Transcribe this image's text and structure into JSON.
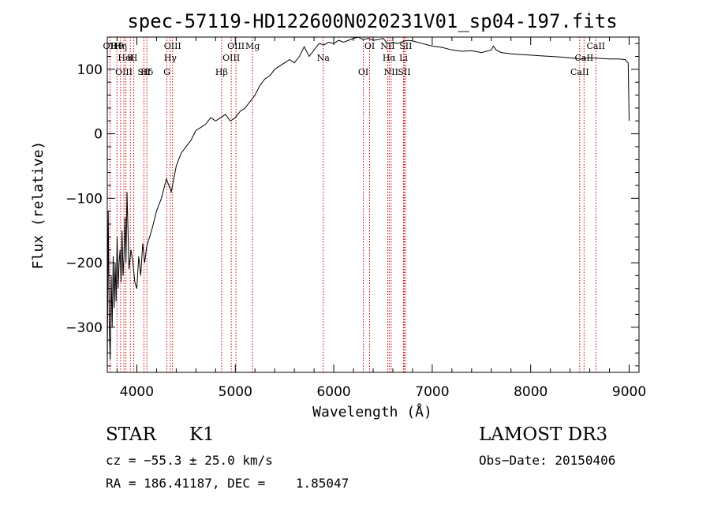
{
  "chart_data": {
    "type": "line",
    "title": "spec-57119-HD122600N020231V01_sp04-197.fits",
    "xlabel": "Wavelength (Å)",
    "ylabel": "Flux (relative)",
    "xlim": [
      3700,
      9100
    ],
    "ylim": [
      -370,
      150
    ],
    "x_ticks": [
      4000,
      5000,
      6000,
      7000,
      8000,
      9000
    ],
    "y_ticks": [
      -300,
      -200,
      -100,
      0,
      100
    ],
    "grid": false,
    "series": [
      {
        "x": [
          3700,
          3710,
          3720,
          3730,
          3740,
          3750,
          3760,
          3770,
          3780,
          3790,
          3800,
          3810,
          3820,
          3830,
          3840,
          3850,
          3860,
          3870,
          3880,
          3890,
          3900,
          3920,
          3940,
          3960,
          3980,
          4000,
          4020,
          4040,
          4060,
          4080,
          4100,
          4150,
          4200,
          4250,
          4300,
          4350,
          4400,
          4450,
          4500,
          4550,
          4600,
          4650,
          4700,
          4750,
          4800,
          4850,
          4900,
          4950,
          5000,
          5050,
          5100,
          5150,
          5200,
          5250,
          5300,
          5350,
          5400,
          5450,
          5500,
          5550,
          5600,
          5650,
          5700,
          5750,
          5800,
          5850,
          5900,
          5950,
          6000,
          6050,
          6100,
          6150,
          6200,
          6250,
          6300,
          6350,
          6400,
          6450,
          6500,
          6550,
          6600,
          6650,
          6700,
          6750,
          6800,
          6900,
          7000,
          7100,
          7200,
          7300,
          7400,
          7500,
          7600,
          7620,
          7650,
          7700,
          7800,
          7900,
          8000,
          8100,
          8200,
          8300,
          8400,
          8500,
          8600,
          8700,
          8800,
          8900,
          8960,
          8990,
          9000
        ],
        "y": [
          -360,
          -120,
          -300,
          -350,
          -220,
          -300,
          -190,
          -270,
          -200,
          -260,
          -160,
          -240,
          -200,
          -180,
          -230,
          -150,
          -220,
          -190,
          -130,
          -200,
          -90,
          -210,
          -180,
          -200,
          -230,
          -240,
          -190,
          -220,
          -170,
          -200,
          -175,
          -150,
          -120,
          -100,
          -70,
          -90,
          -50,
          -30,
          -20,
          -10,
          5,
          10,
          15,
          25,
          20,
          25,
          30,
          20,
          25,
          35,
          40,
          50,
          60,
          75,
          85,
          90,
          100,
          105,
          110,
          115,
          110,
          120,
          135,
          120,
          130,
          140,
          138,
          142,
          140,
          145,
          142,
          145,
          148,
          150,
          146,
          148,
          145,
          146,
          148,
          140,
          142,
          140,
          143,
          145,
          144,
          140,
          136,
          134,
          130,
          128,
          129,
          126,
          130,
          136,
          130,
          126,
          124,
          123,
          122,
          121,
          120,
          119,
          118,
          116,
          118,
          117,
          116,
          116,
          115,
          110,
          20
        ]
      }
    ],
    "line_markers": [
      {
        "label": "Hθ",
        "wl": 3798
      },
      {
        "label": "K",
        "wl": 3934
      },
      {
        "label": "Hδ",
        "wl": 4102
      },
      {
        "label": "OII",
        "wl": 3727
      },
      {
        "label": "HeI",
        "wl": 3889
      },
      {
        "label": "SII",
        "wl": 4072
      },
      {
        "label": "OIII",
        "wl": 4363
      },
      {
        "label": "Hγ",
        "wl": 4340
      },
      {
        "label": "OIII",
        "wl": 3869
      },
      {
        "label": "Hη",
        "wl": 3835
      },
      {
        "label": "H",
        "wl": 3969
      },
      {
        "label": "G",
        "wl": 4305
      },
      {
        "label": "OIII",
        "wl": 5007
      },
      {
        "label": "OIII",
        "wl": 4959
      },
      {
        "label": "Hβ",
        "wl": 4861
      },
      {
        "label": "Mg",
        "wl": 5175
      },
      {
        "label": "Na",
        "wl": 5893
      },
      {
        "label": "OI",
        "wl": 6300
      },
      {
        "label": "OI",
        "wl": 6364
      },
      {
        "label": "Hα",
        "wl": 6563
      },
      {
        "label": "SII",
        "wl": 6716
      },
      {
        "label": "NII",
        "wl": 6548
      },
      {
        "label": "Li",
        "wl": 6708
      },
      {
        "label": "NII",
        "wl": 6583
      },
      {
        "label": "SII",
        "wl": 6731
      },
      {
        "label": "CaII",
        "wl": 8542
      },
      {
        "label": "CaII",
        "wl": 8498
      },
      {
        "label": "CaII",
        "wl": 8662
      }
    ]
  },
  "info": {
    "class_label": "STAR",
    "subclass": "K1",
    "survey": "LAMOST DR3",
    "cz": "cz = −55.3 ± 25.0 km/s",
    "obs_date": "Obs−Date: 20150406",
    "radec": "RA = 186.41187, DEC =    1.85047"
  }
}
